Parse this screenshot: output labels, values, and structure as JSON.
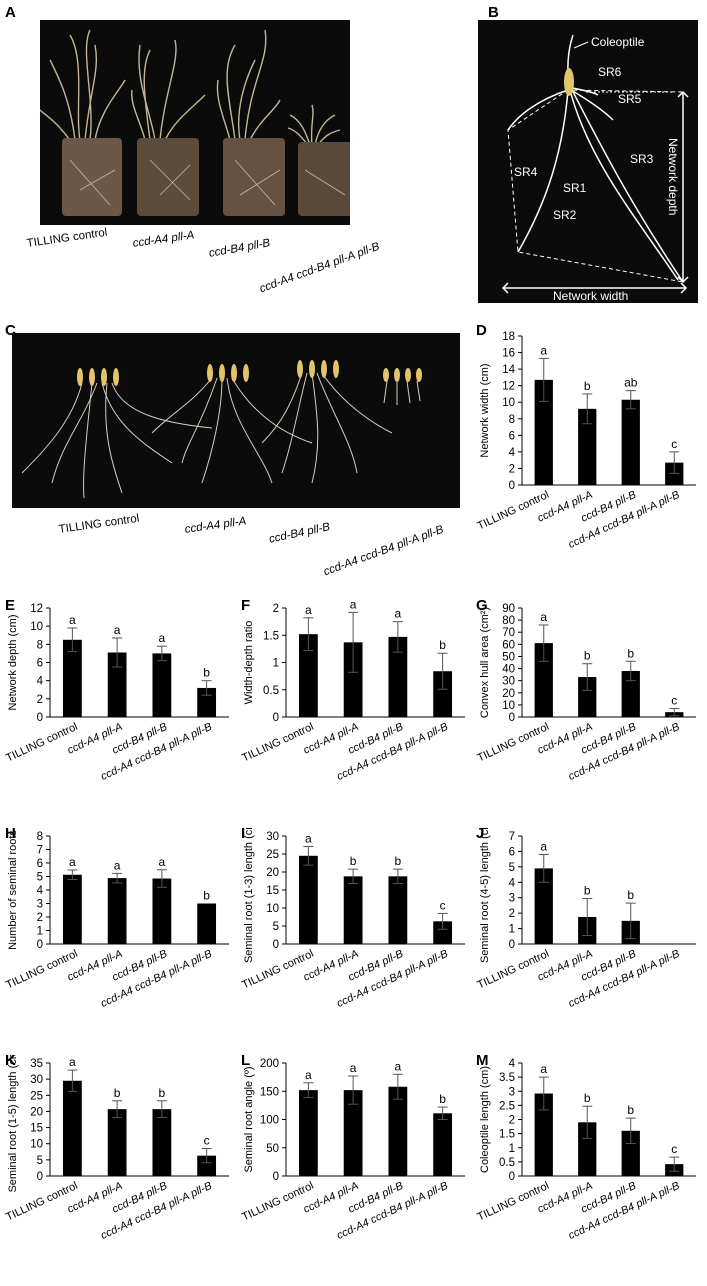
{
  "figure": {
    "panels": [
      "A",
      "B",
      "C",
      "D",
      "E",
      "F",
      "G",
      "H",
      "I",
      "J",
      "K",
      "L",
      "M"
    ],
    "genotypes": [
      "TILLING control",
      "ccd-A4 pll-A",
      "ccd-B4 pll-B",
      "ccd-A4 ccd-B4 pll-A pll-B"
    ],
    "panel_b": {
      "labels": {
        "coleoptile": "Coleoptile",
        "sr1": "SR1",
        "sr2": "SR2",
        "sr3": "SR3",
        "sr4": "SR4",
        "sr5": "SR5",
        "sr6": "SR6",
        "network_depth": "Network depth",
        "network_width": "Network width"
      }
    },
    "colors": {
      "photo_bg": "#0b0b0b",
      "bar": "#000000",
      "soil": "#6b5846",
      "root": "#e9e2cf"
    }
  },
  "chart_data": [
    {
      "panel": "D",
      "type": "bar",
      "categories": [
        "TILLING control",
        "ccd-A4 pll-A",
        "ccd-B4 pll-B",
        "ccd-A4 ccd-B4 pll-A pll-B"
      ],
      "values": [
        12.7,
        9.2,
        10.3,
        2.7
      ],
      "errors": [
        2.6,
        1.8,
        1.1,
        1.3
      ],
      "letters": [
        "a",
        "b",
        "ab",
        "c"
      ],
      "ylabel": "Network width (cm)",
      "ylim": [
        0,
        18
      ],
      "yticks": [
        0,
        2,
        4,
        6,
        8,
        10,
        12,
        14,
        16,
        18
      ]
    },
    {
      "panel": "E",
      "type": "bar",
      "categories": [
        "TILLING control",
        "ccd-A4 pll-A",
        "ccd-B4 pll-B",
        "ccd-A4 ccd-B4 pll-A pll-B"
      ],
      "values": [
        8.5,
        7.1,
        7.0,
        3.2
      ],
      "errors": [
        1.3,
        1.6,
        0.8,
        0.8
      ],
      "letters": [
        "a",
        "a",
        "a",
        "b"
      ],
      "ylabel": "Network depth (cm)",
      "ylim": [
        0,
        12
      ],
      "yticks": [
        0,
        2,
        4,
        6,
        8,
        10,
        12
      ]
    },
    {
      "panel": "F",
      "type": "bar",
      "categories": [
        "TILLING control",
        "ccd-A4 pll-A",
        "ccd-B4 pll-B",
        "ccd-A4 ccd-B4 pll-A pll-B"
      ],
      "values": [
        1.52,
        1.37,
        1.47,
        0.84
      ],
      "errors": [
        0.3,
        0.55,
        0.28,
        0.33
      ],
      "letters": [
        "a",
        "a",
        "a",
        "b"
      ],
      "ylabel": "Width-depth ratio",
      "ylim": [
        0,
        2
      ],
      "yticks": [
        0,
        0.5,
        1,
        1.5,
        2
      ]
    },
    {
      "panel": "G",
      "type": "bar",
      "categories": [
        "TILLING control",
        "ccd-A4 pll-A",
        "ccd-B4 pll-B",
        "ccd-A4 ccd-B4 pll-A pll-B"
      ],
      "values": [
        61,
        33,
        38,
        4
      ],
      "errors": [
        15,
        11,
        8,
        3
      ],
      "letters": [
        "a",
        "b",
        "b",
        "c"
      ],
      "ylabel": "Convex hull area (cm²)",
      "ylim": [
        0,
        90
      ],
      "yticks": [
        0,
        10,
        20,
        30,
        40,
        50,
        60,
        70,
        80,
        90
      ]
    },
    {
      "panel": "H",
      "type": "bar",
      "categories": [
        "TILLING control",
        "ccd-A4 pll-A",
        "ccd-B4 pll-B",
        "ccd-A4 ccd-B4 pll-A pll-B"
      ],
      "values": [
        5.13,
        4.88,
        4.85,
        3.0
      ],
      "errors": [
        0.35,
        0.35,
        0.65,
        0
      ],
      "letters": [
        "a",
        "a",
        "a",
        "b"
      ],
      "ylabel": "Number of seminal roots",
      "ylim": [
        0,
        8
      ],
      "yticks": [
        0,
        1,
        2,
        3,
        4,
        5,
        6,
        7,
        8
      ]
    },
    {
      "panel": "I",
      "type": "bar",
      "categories": [
        "TILLING control",
        "ccd-A4 pll-A",
        "ccd-B4 pll-B",
        "ccd-A4 ccd-B4 pll-A pll-B"
      ],
      "values": [
        24.5,
        18.8,
        18.8,
        6.3
      ],
      "errors": [
        2.6,
        2.0,
        2.0,
        2.2
      ],
      "letters": [
        "a",
        "b",
        "b",
        "c"
      ],
      "ylabel": "Seminal root (1-3) length (cm)",
      "ylim": [
        0,
        30
      ],
      "yticks": [
        0,
        5,
        10,
        15,
        20,
        25,
        30
      ]
    },
    {
      "panel": "J",
      "type": "bar",
      "categories": [
        "TILLING control",
        "ccd-A4 pll-A",
        "ccd-B4 pll-B",
        "ccd-A4 ccd-B4 pll-A pll-B"
      ],
      "values": [
        4.9,
        1.75,
        1.5,
        0
      ],
      "errors": [
        0.9,
        1.2,
        1.15,
        0
      ],
      "letters": [
        "a",
        "b",
        "b",
        ""
      ],
      "ylabel": "Seminal root (4-5) length (cm)",
      "ylim": [
        0,
        7
      ],
      "yticks": [
        0,
        1,
        2,
        3,
        4,
        5,
        6,
        7
      ]
    },
    {
      "panel": "K",
      "type": "bar",
      "categories": [
        "TILLING control",
        "ccd-A4 pll-A",
        "ccd-B4 pll-B",
        "ccd-A4 ccd-B4 pll-A pll-B"
      ],
      "values": [
        29.5,
        20.7,
        20.7,
        6.3
      ],
      "errors": [
        3.3,
        2.6,
        2.6,
        2.2
      ],
      "letters": [
        "a",
        "b",
        "b",
        "c"
      ],
      "ylabel": "Seminal root (1-5) length (cm)",
      "ylim": [
        0,
        35
      ],
      "yticks": [
        0,
        5,
        10,
        15,
        20,
        25,
        30,
        35
      ]
    },
    {
      "panel": "L",
      "type": "bar",
      "categories": [
        "TILLING control",
        "ccd-A4 pll-A",
        "ccd-B4 pll-B",
        "ccd-A4 ccd-B4 pll-A pll-B"
      ],
      "values": [
        152,
        152,
        158,
        111
      ],
      "errors": [
        13,
        25,
        22,
        11
      ],
      "letters": [
        "a",
        "a",
        "a",
        "b"
      ],
      "ylabel": "Seminal root angle (º)",
      "ylim": [
        0,
        200
      ],
      "yticks": [
        0,
        50,
        100,
        150,
        200
      ]
    },
    {
      "panel": "M",
      "type": "bar",
      "categories": [
        "TILLING control",
        "ccd-A4 pll-A",
        "ccd-B4 pll-B",
        "ccd-A4 ccd-B4 pll-A pll-B"
      ],
      "values": [
        2.92,
        1.9,
        1.6,
        0.42
      ],
      "errors": [
        0.58,
        0.57,
        0.45,
        0.25
      ],
      "letters": [
        "a",
        "b",
        "b",
        "c"
      ],
      "ylabel": "Coleoptile length (cm)",
      "ylim": [
        0,
        4
      ],
      "yticks": [
        0,
        0.5,
        1,
        1.5,
        2,
        2.5,
        3,
        3.5,
        4
      ]
    }
  ]
}
